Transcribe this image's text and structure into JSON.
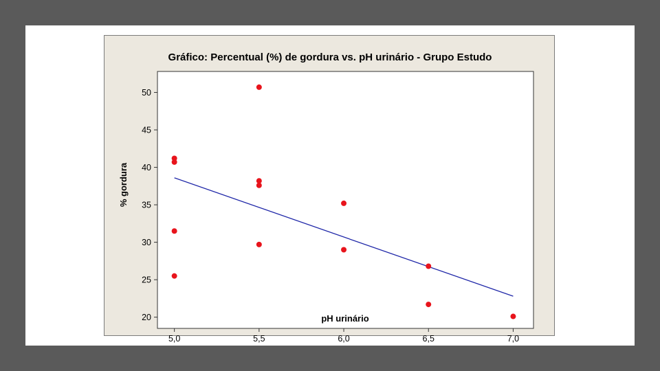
{
  "chart_data": {
    "type": "scatter",
    "title": "Gráfico: Percentual (%) de  gordura vs. pH urinário - Grupo Estudo",
    "xlabel": "pH urinário",
    "ylabel": "% gordura",
    "xlim": [
      4.9,
      7.12
    ],
    "ylim": [
      18.5,
      52.8
    ],
    "xticks": [
      5.0,
      5.5,
      6.0,
      6.5,
      7.0
    ],
    "xtick_labels": [
      "5,0",
      "5,5",
      "6,0",
      "6,5",
      "7,0"
    ],
    "yticks": [
      20,
      25,
      30,
      35,
      40,
      45,
      50
    ],
    "ytick_labels": [
      "20",
      "25",
      "30",
      "35",
      "40",
      "45",
      "50"
    ],
    "grid": false,
    "series": [
      {
        "color": "#e8141c",
        "points": [
          [
            5.0,
            41.2
          ],
          [
            5.0,
            40.7
          ],
          [
            5.0,
            31.5
          ],
          [
            5.0,
            25.5
          ],
          [
            5.5,
            50.7
          ],
          [
            5.5,
            38.2
          ],
          [
            5.5,
            37.6
          ],
          [
            5.5,
            29.7
          ],
          [
            6.0,
            35.2
          ],
          [
            6.0,
            29.0
          ],
          [
            6.5,
            26.8
          ],
          [
            6.5,
            21.7
          ],
          [
            7.0,
            20.1
          ]
        ]
      }
    ],
    "fit_line": {
      "type": "linear",
      "x": [
        5.0,
        7.0
      ],
      "y": [
        38.6,
        22.8
      ],
      "color": "#1f27a8"
    },
    "colors": {
      "page_background": "#5a5a5a",
      "slide": "#ffffff",
      "chart_background": "#ece8df",
      "plot_area": "#ffffff"
    }
  }
}
